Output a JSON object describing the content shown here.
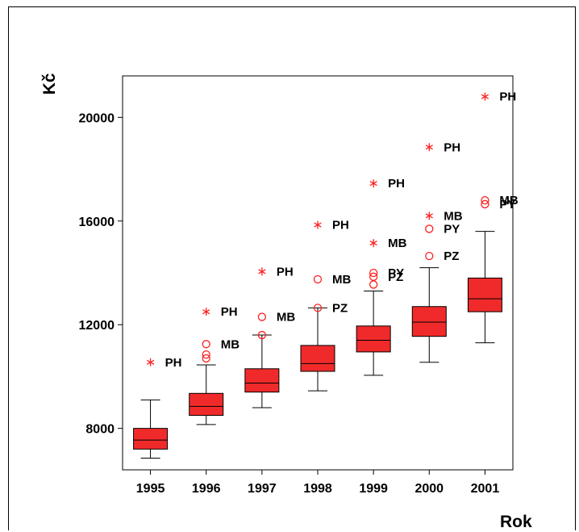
{
  "chart_data": {
    "type": "boxplot",
    "xlabel": "Rok",
    "ylabel": "Kč",
    "ylim": [
      6400,
      21600
    ],
    "yticks": [
      8000,
      12000,
      16000,
      20000
    ],
    "categories": [
      "1995",
      "1996",
      "1997",
      "1998",
      "1999",
      "2000",
      "2001"
    ],
    "boxes": [
      {
        "category": "1995",
        "whisker_low": 6850,
        "q1": 7200,
        "median": 7550,
        "q3": 8000,
        "whisker_high": 9100
      },
      {
        "category": "1996",
        "whisker_low": 8150,
        "q1": 8500,
        "median": 8850,
        "q3": 9350,
        "whisker_high": 10450
      },
      {
        "category": "1997",
        "whisker_low": 8800,
        "q1": 9400,
        "median": 9750,
        "q3": 10300,
        "whisker_high": 11600
      },
      {
        "category": "1998",
        "whisker_low": 9450,
        "q1": 10200,
        "median": 10500,
        "q3": 11200,
        "whisker_high": 12650
      },
      {
        "category": "1999",
        "whisker_low": 10050,
        "q1": 10950,
        "median": 11400,
        "q3": 11950,
        "whisker_high": 13300
      },
      {
        "category": "2000",
        "whisker_low": 10550,
        "q1": 11550,
        "median": 12100,
        "q3": 12700,
        "whisker_high": 14200
      },
      {
        "category": "2001",
        "whisker_low": 11300,
        "q1": 12500,
        "median": 13000,
        "q3": 13800,
        "whisker_high": 15600
      }
    ],
    "outliers": [
      {
        "category": "1995",
        "value": 10550,
        "symbol": "star",
        "label": "PH"
      },
      {
        "category": "1996",
        "value": 12500,
        "symbol": "star",
        "label": "PH"
      },
      {
        "category": "1996",
        "value": 11250,
        "symbol": "circle",
        "label": "MB"
      },
      {
        "category": "1996",
        "value": 10850,
        "symbol": "circle",
        "label": ""
      },
      {
        "category": "1996",
        "value": 10700,
        "symbol": "circle",
        "label": ""
      },
      {
        "category": "1997",
        "value": 14050,
        "symbol": "star",
        "label": "PH"
      },
      {
        "category": "1997",
        "value": 12300,
        "symbol": "circle",
        "label": "MB"
      },
      {
        "category": "1997",
        "value": 11600,
        "symbol": "circle",
        "label": ""
      },
      {
        "category": "1998",
        "value": 15850,
        "symbol": "star",
        "label": "PH"
      },
      {
        "category": "1998",
        "value": 13750,
        "symbol": "circle",
        "label": "MB"
      },
      {
        "category": "1998",
        "value": 12650,
        "symbol": "circle",
        "label": "PZ"
      },
      {
        "category": "1999",
        "value": 17450,
        "symbol": "star",
        "label": "PH"
      },
      {
        "category": "1999",
        "value": 15150,
        "symbol": "star",
        "label": "MB"
      },
      {
        "category": "1999",
        "value": 14000,
        "symbol": "circle",
        "label": "PY"
      },
      {
        "category": "1999",
        "value": 13850,
        "symbol": "circle",
        "label": "PZ"
      },
      {
        "category": "1999",
        "value": 13550,
        "symbol": "circle",
        "label": ""
      },
      {
        "category": "2000",
        "value": 18850,
        "symbol": "star",
        "label": "PH"
      },
      {
        "category": "2000",
        "value": 16200,
        "symbol": "star",
        "label": "MB"
      },
      {
        "category": "2000",
        "value": 15700,
        "symbol": "circle",
        "label": "PY"
      },
      {
        "category": "2000",
        "value": 14650,
        "symbol": "circle",
        "label": "PZ"
      },
      {
        "category": "2001",
        "value": 20800,
        "symbol": "star",
        "label": "PH"
      },
      {
        "category": "2001",
        "value": 16800,
        "symbol": "circle",
        "label": "MB"
      },
      {
        "category": "2001",
        "value": 16650,
        "symbol": "circle",
        "label": "PY"
      }
    ],
    "colors": {
      "box_fill": "#f02a2a",
      "outlier": "#ff2020",
      "line": "#000000"
    },
    "grid": false
  }
}
